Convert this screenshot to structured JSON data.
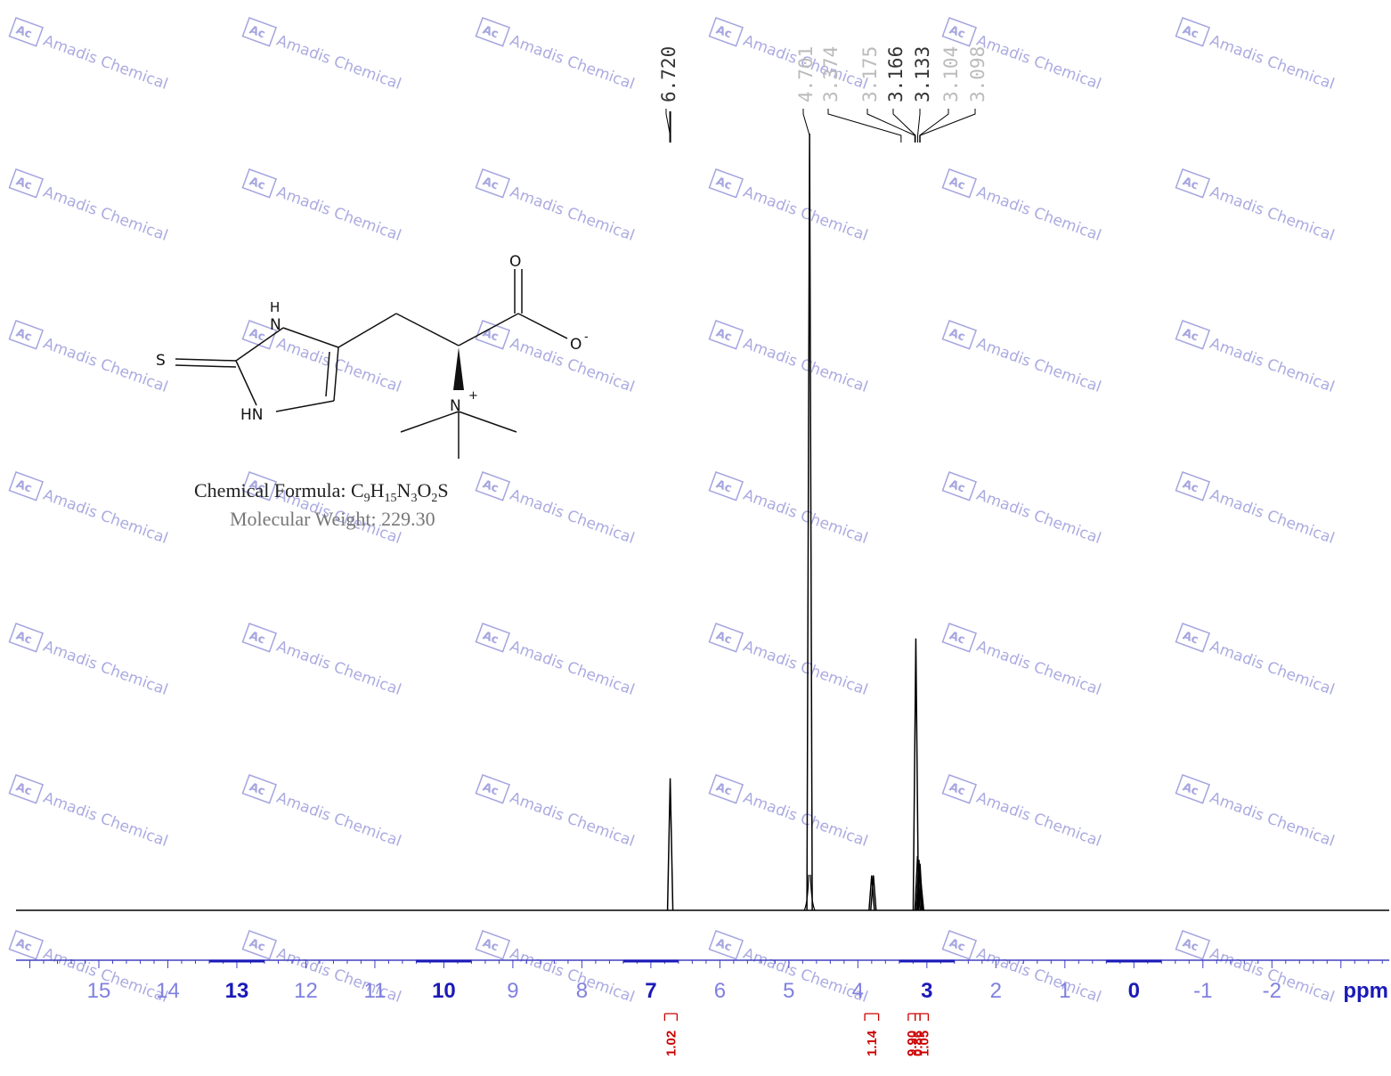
{
  "watermark": {
    "logo": "Ac",
    "text": "Amadis Chemical"
  },
  "structure": {
    "atoms": {
      "o_top": "O",
      "o_minus": "O",
      "o_charge": "-",
      "s": "S",
      "nh_top": "H",
      "n_top": "N",
      "hn_bottom": "HN",
      "n_plus": "N",
      "n_charge": "+"
    },
    "formula_label": "Chemical Formula: ",
    "formula_parts": [
      {
        "t": "C",
        "sub": false
      },
      {
        "t": "9",
        "sub": true
      },
      {
        "t": "H",
        "sub": false
      },
      {
        "t": "15",
        "sub": true
      },
      {
        "t": "N",
        "sub": false
      },
      {
        "t": "3",
        "sub": true
      },
      {
        "t": "O",
        "sub": false
      },
      {
        "t": "2",
        "sub": true
      },
      {
        "t": "S",
        "sub": false
      }
    ],
    "molecular_weight": "Molecular Weight: 229.30"
  },
  "chart_data": {
    "type": "line",
    "xlabel": "ppm",
    "xlim": [
      16.2,
      -3.7
    ],
    "x_reversed": true,
    "x_ticks": [
      15,
      14,
      13,
      12,
      11,
      10,
      9,
      8,
      7,
      6,
      5,
      4,
      3,
      2,
      1,
      0,
      -1,
      -2
    ],
    "x_tick_labels": [
      "15",
      "14",
      "13",
      "12",
      "11",
      "10",
      "9",
      "8",
      "7",
      "6",
      "5",
      "4",
      "3",
      "2",
      "1",
      "0",
      "-1",
      "-2"
    ],
    "bold_ticks": [
      13,
      10,
      7,
      3,
      0
    ],
    "peak_labels": [
      {
        "ppm": 6.72,
        "label": "6.720",
        "strong": true
      },
      {
        "ppm": 4.701,
        "label": "4.701",
        "strong": false
      },
      {
        "ppm": 3.374,
        "label": "3.374",
        "strong": false
      },
      {
        "ppm": 3.175,
        "label": "3.175",
        "strong": false
      },
      {
        "ppm": 3.166,
        "label": "3.166",
        "strong": true
      },
      {
        "ppm": 3.133,
        "label": "3.133",
        "strong": true
      },
      {
        "ppm": 3.104,
        "label": "3.104",
        "strong": false
      },
      {
        "ppm": 3.098,
        "label": "3.098",
        "strong": false
      }
    ],
    "peaks": [
      {
        "ppm": 6.72,
        "height": 0.17
      },
      {
        "ppm": 4.7,
        "height": 1.0
      },
      {
        "ppm": 3.8,
        "height": 0.045
      },
      {
        "ppm": 3.775,
        "height": 0.045
      },
      {
        "ppm": 3.16,
        "height": 0.35
      },
      {
        "ppm": 3.135,
        "height": 0.07
      },
      {
        "ppm": 3.115,
        "height": 0.065
      },
      {
        "ppm": 3.1,
        "height": 0.06
      },
      {
        "ppm": 3.085,
        "height": 0.035
      }
    ],
    "integrations": [
      {
        "from": 6.8,
        "to": 6.62,
        "value": "1.02"
      },
      {
        "from": 3.9,
        "to": 3.7,
        "value": "1.14"
      },
      {
        "from": 3.27,
        "to": 3.17,
        "value": "9.90"
      },
      {
        "from": 3.17,
        "to": 3.1,
        "value": "0.86"
      },
      {
        "from": 3.1,
        "to": 2.98,
        "value": "1.05"
      }
    ],
    "colors": {
      "spectrum": "#000000",
      "axis": "#4040c0",
      "tick_label": "#8080e0",
      "tick_label_bold": "#1a1ab8",
      "integration": "#cc0000",
      "watermark": "#8f8fd8",
      "peak_label_strong": "#333333",
      "peak_label_weak": "#bbbbbb"
    }
  }
}
